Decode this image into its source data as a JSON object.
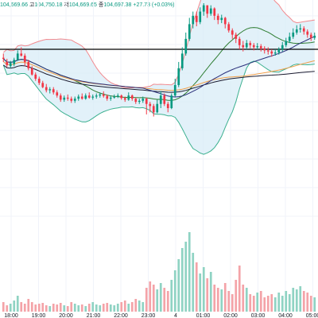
{
  "ohlc_bar": {
    "open_value": "104,669.66",
    "high_label": "고",
    "high_value": "104,750.18",
    "low_label": "저",
    "low_value": "104,669.65",
    "close_label": "종",
    "close_value": "104,697.38",
    "change": "+27.73 (+0.03%)"
  },
  "colors": {
    "up": "#089981",
    "down": "#f23645",
    "vol_up": "#8fd3c3",
    "vol_down": "#f4a3a8",
    "bb_upper": "#f28a8f",
    "bb_lower": "#3bb08f",
    "bb_basis": "#2e7d32",
    "band_fill": "#d6ebf7",
    "ma_orange": "#f0a04b",
    "ma_black": "#1b1b2f",
    "ma_navy": "#2a2f7a",
    "hline": "#000000"
  },
  "chart_data": {
    "type": "candlestick",
    "x_ticks": [
      "18:00",
      "19:00",
      "20:00",
      "21:00",
      "22:00",
      "23:00",
      "4",
      "01:00",
      "02:00",
      "03:00",
      "04:00",
      "05:00"
    ],
    "horizontal_line": true,
    "grid": true,
    "candles": [
      [
        0.74,
        0.735,
        0.76,
        0.72
      ],
      [
        0.72,
        0.705,
        0.735,
        0.695
      ],
      [
        0.7,
        0.715,
        0.725,
        0.69
      ],
      [
        0.71,
        0.73,
        0.74,
        0.7
      ],
      [
        0.73,
        0.76,
        0.775,
        0.725
      ],
      [
        0.76,
        0.75,
        0.79,
        0.745
      ],
      [
        0.75,
        0.72,
        0.76,
        0.7
      ],
      [
        0.72,
        0.69,
        0.73,
        0.68
      ],
      [
        0.69,
        0.66,
        0.7,
        0.655
      ],
      [
        0.66,
        0.64,
        0.67,
        0.63
      ],
      [
        0.64,
        0.62,
        0.65,
        0.61
      ],
      [
        0.62,
        0.6,
        0.63,
        0.595
      ],
      [
        0.6,
        0.585,
        0.615,
        0.575
      ],
      [
        0.585,
        0.59,
        0.6,
        0.57
      ],
      [
        0.59,
        0.575,
        0.6,
        0.565
      ],
      [
        0.575,
        0.56,
        0.585,
        0.55
      ],
      [
        0.56,
        0.54,
        0.57,
        0.53
      ],
      [
        0.54,
        0.55,
        0.56,
        0.53
      ],
      [
        0.55,
        0.545,
        0.565,
        0.535
      ],
      [
        0.545,
        0.535,
        0.555,
        0.525
      ],
      [
        0.535,
        0.545,
        0.555,
        0.525
      ],
      [
        0.545,
        0.555,
        0.565,
        0.535
      ],
      [
        0.555,
        0.545,
        0.57,
        0.54
      ],
      [
        0.545,
        0.56,
        0.57,
        0.54
      ],
      [
        0.56,
        0.55,
        0.575,
        0.545
      ],
      [
        0.55,
        0.555,
        0.565,
        0.54
      ],
      [
        0.555,
        0.56,
        0.57,
        0.545
      ],
      [
        0.56,
        0.565,
        0.575,
        0.55
      ],
      [
        0.565,
        0.558,
        0.58,
        0.55
      ],
      [
        0.558,
        0.545,
        0.565,
        0.535
      ],
      [
        0.545,
        0.55,
        0.56,
        0.535
      ],
      [
        0.55,
        0.555,
        0.565,
        0.545
      ],
      [
        0.555,
        0.56,
        0.57,
        0.548
      ],
      [
        0.56,
        0.548,
        0.565,
        0.54
      ],
      [
        0.548,
        0.54,
        0.555,
        0.53
      ],
      [
        0.54,
        0.56,
        0.575,
        0.535
      ],
      [
        0.56,
        0.545,
        0.565,
        0.535
      ],
      [
        0.545,
        0.53,
        0.55,
        0.52
      ],
      [
        0.53,
        0.535,
        0.545,
        0.52
      ],
      [
        0.535,
        0.545,
        0.555,
        0.525
      ],
      [
        0.545,
        0.52,
        0.55,
        0.47
      ],
      [
        0.52,
        0.51,
        0.53,
        0.48
      ],
      [
        0.51,
        0.48,
        0.52,
        0.46
      ],
      [
        0.48,
        0.52,
        0.54,
        0.475
      ],
      [
        0.52,
        0.56,
        0.58,
        0.5
      ],
      [
        0.56,
        0.52,
        0.57,
        0.51
      ],
      [
        0.52,
        0.5,
        0.53,
        0.48
      ],
      [
        0.5,
        0.56,
        0.57,
        0.495
      ],
      [
        0.56,
        0.61,
        0.64,
        0.555
      ],
      [
        0.61,
        0.69,
        0.72,
        0.6
      ],
      [
        0.69,
        0.76,
        0.79,
        0.68
      ],
      [
        0.76,
        0.83,
        0.86,
        0.75
      ],
      [
        0.83,
        0.9,
        0.93,
        0.82
      ],
      [
        0.9,
        0.94,
        0.96,
        0.88
      ],
      [
        0.94,
        0.91,
        0.96,
        0.89
      ],
      [
        0.91,
        0.96,
        0.98,
        0.9
      ],
      [
        0.96,
        0.99,
        1.0,
        0.94
      ],
      [
        0.99,
        0.95,
        0.99,
        0.93
      ],
      [
        0.95,
        0.975,
        0.99,
        0.94
      ],
      [
        0.975,
        0.94,
        0.98,
        0.92
      ],
      [
        0.94,
        0.92,
        0.95,
        0.9
      ],
      [
        0.92,
        0.93,
        0.945,
        0.905
      ],
      [
        0.93,
        0.9,
        0.935,
        0.88
      ],
      [
        0.9,
        0.87,
        0.91,
        0.86
      ],
      [
        0.87,
        0.85,
        0.88,
        0.83
      ],
      [
        0.85,
        0.83,
        0.86,
        0.81
      ],
      [
        0.83,
        0.8,
        0.84,
        0.78
      ],
      [
        0.8,
        0.79,
        0.82,
        0.77
      ],
      [
        0.79,
        0.81,
        0.825,
        0.78
      ],
      [
        0.81,
        0.8,
        0.82,
        0.785
      ],
      [
        0.8,
        0.79,
        0.81,
        0.775
      ],
      [
        0.79,
        0.795,
        0.81,
        0.78
      ],
      [
        0.795,
        0.785,
        0.805,
        0.77
      ],
      [
        0.785,
        0.775,
        0.795,
        0.76
      ],
      [
        0.775,
        0.77,
        0.79,
        0.755
      ],
      [
        0.77,
        0.76,
        0.78,
        0.745
      ],
      [
        0.76,
        0.765,
        0.78,
        0.75
      ],
      [
        0.765,
        0.78,
        0.79,
        0.755
      ],
      [
        0.78,
        0.8,
        0.815,
        0.77
      ],
      [
        0.8,
        0.82,
        0.835,
        0.79
      ],
      [
        0.82,
        0.84,
        0.86,
        0.81
      ],
      [
        0.84,
        0.86,
        0.88,
        0.83
      ],
      [
        0.86,
        0.875,
        0.895,
        0.85
      ],
      [
        0.875,
        0.88,
        0.9,
        0.86
      ],
      [
        0.88,
        0.865,
        0.89,
        0.85
      ],
      [
        0.865,
        0.85,
        0.875,
        0.835
      ],
      [
        0.85,
        0.835,
        0.86,
        0.82
      ],
      [
        0.835,
        0.845,
        0.86,
        0.825
      ]
    ],
    "volumes": [
      0.12,
      0.08,
      0.1,
      0.14,
      0.2,
      0.12,
      0.1,
      0.16,
      0.12,
      0.09,
      0.1,
      0.11,
      0.08,
      0.07,
      0.1,
      0.09,
      0.11,
      0.08,
      0.07,
      0.12,
      0.1,
      0.08,
      0.09,
      0.07,
      0.1,
      0.12,
      0.09,
      0.08,
      0.1,
      0.11,
      0.09,
      0.08,
      0.1,
      0.12,
      0.14,
      0.1,
      0.12,
      0.16,
      0.14,
      0.12,
      0.3,
      0.38,
      0.34,
      0.28,
      0.36,
      0.3,
      0.26,
      0.4,
      0.52,
      0.66,
      0.8,
      0.88,
      1.0,
      0.74,
      0.62,
      0.48,
      0.56,
      0.42,
      0.5,
      0.34,
      0.3,
      0.28,
      0.36,
      0.26,
      0.22,
      0.4,
      0.58,
      0.34,
      0.3,
      0.22,
      0.2,
      0.24,
      0.26,
      0.18,
      0.2,
      0.22,
      0.18,
      0.24,
      0.2,
      0.26,
      0.22,
      0.3,
      0.28,
      0.32,
      0.26,
      0.24,
      0.2,
      0.18
    ]
  }
}
